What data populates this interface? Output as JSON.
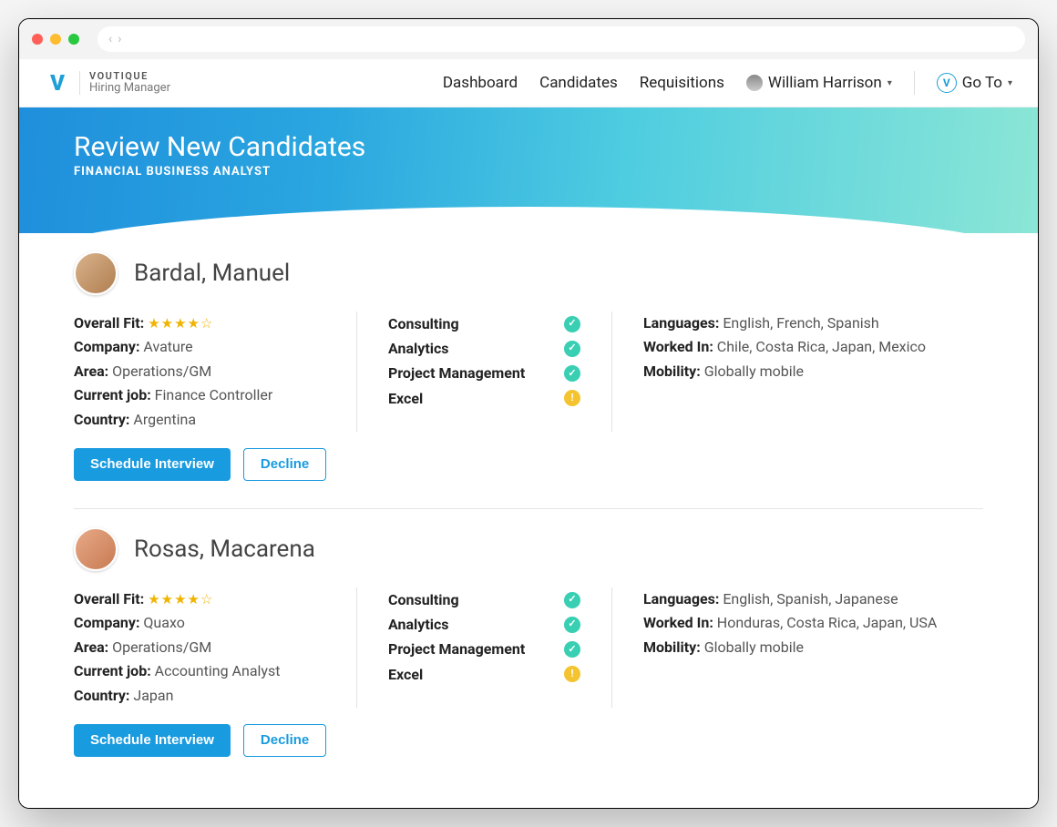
{
  "brand": {
    "name": "VOUTIQUE",
    "role": "Hiring Manager",
    "mark": "V"
  },
  "nav": {
    "items": [
      "Dashboard",
      "Candidates",
      "Requisitions"
    ],
    "user": "William Harrison",
    "goto": "Go To"
  },
  "hero": {
    "title": "Review New Candidates",
    "subtitle": "FINANCIAL BUSINESS ANALYST"
  },
  "labels": {
    "overall_fit": "Overall Fit:",
    "company": "Company:",
    "area": "Area:",
    "current_job": "Current job:",
    "country": "Country:",
    "languages": "Languages:",
    "worked_in": "Worked In:",
    "mobility": "Mobility:",
    "schedule": "Schedule Interview",
    "decline": "Decline"
  },
  "colors": {
    "primary": "#199bdf",
    "accent_teal": "#38cfb3",
    "accent_amber": "#f4c430",
    "star": "#f0b400"
  },
  "candidates": [
    {
      "name": "Bardal, Manuel",
      "stars": "★★★★☆",
      "company": "Avature",
      "area": "Operations/GM",
      "current_job": "Finance Controller",
      "country": "Argentina",
      "skills": [
        {
          "label": "Consulting",
          "status": "ok"
        },
        {
          "label": "Analytics",
          "status": "ok"
        },
        {
          "label": "Project Management",
          "status": "ok"
        },
        {
          "label": "Excel",
          "status": "warn"
        }
      ],
      "languages": "English, French, Spanish",
      "worked_in": "Chile, Costa Rica, Japan, Mexico",
      "mobility": "Globally mobile"
    },
    {
      "name": "Rosas, Macarena",
      "stars": "★★★★☆",
      "company": "Quaxo",
      "area": "Operations/GM",
      "current_job": "Accounting Analyst",
      "country": "Japan",
      "skills": [
        {
          "label": "Consulting",
          "status": "ok"
        },
        {
          "label": "Analytics",
          "status": "ok"
        },
        {
          "label": "Project Management",
          "status": "ok"
        },
        {
          "label": "Excel",
          "status": "warn"
        }
      ],
      "languages": "English, Spanish, Japanese",
      "worked_in": "Honduras, Costa Rica, Japan, USA",
      "mobility": "Globally mobile"
    }
  ]
}
